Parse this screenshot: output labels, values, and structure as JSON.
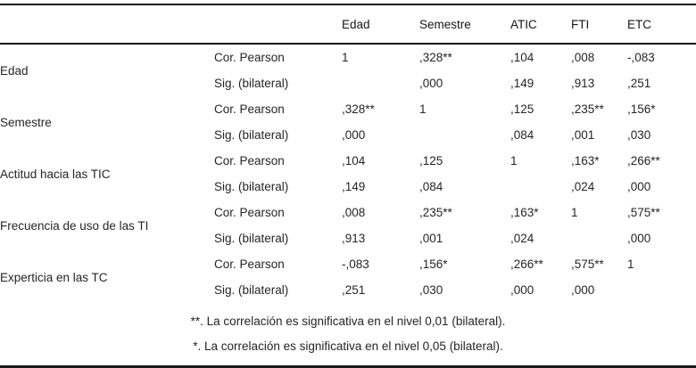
{
  "table": {
    "header": [
      "",
      "",
      "Edad",
      "Semestre",
      "ATIC",
      "FTI",
      "ETC"
    ],
    "stat_label_pearson": "Cor. Pearson",
    "stat_label_sig": "Sig. (bilateral)",
    "groups": [
      {
        "label": "Edad",
        "stat_rows": [
          {
            "stat": "Cor. Pearson",
            "values": [
              "1",
              ",328**",
              ",104",
              ",008",
              "-,083"
            ]
          },
          {
            "stat": "Sig. (bilateral)",
            "values": [
              "",
              ",000",
              ",149",
              ",913",
              ",251"
            ]
          }
        ]
      },
      {
        "label": "Semestre",
        "stat_rows": [
          {
            "stat": "Cor. Pearson",
            "values": [
              ",328**",
              "1",
              ",125",
              ",235**",
              ",156*"
            ]
          },
          {
            "stat": "Sig. (bilateral)",
            "values": [
              ",000",
              "",
              ",084",
              ",001",
              ",030"
            ]
          }
        ]
      },
      {
        "label": "Actitud hacia las TIC",
        "stat_rows": [
          {
            "stat": "Cor. Pearson",
            "values": [
              ",104",
              ",125",
              "1",
              ",163*",
              ",266**"
            ]
          },
          {
            "stat": "Sig. (bilateral)",
            "values": [
              ",149",
              ",084",
              "",
              ",024",
              ",000"
            ]
          }
        ]
      },
      {
        "label": "Frecuencia de uso de las TI",
        "stat_rows": [
          {
            "stat": "Cor. Pearson",
            "values": [
              ",008",
              ",235**",
              ",163*",
              "1",
              ",575**"
            ]
          },
          {
            "stat": "Sig. (bilateral)",
            "values": [
              ",913",
              ",001",
              ",024",
              "",
              ",000"
            ]
          }
        ]
      },
      {
        "label": "Experticia en las TC",
        "stat_rows": [
          {
            "stat": "Cor. Pearson",
            "values": [
              "-,083",
              ",156*",
              ",266**",
              ",575**",
              "1"
            ]
          },
          {
            "stat": "Sig. (bilateral)",
            "values": [
              ",251",
              ",030",
              ",000",
              ",000",
              ""
            ]
          }
        ]
      }
    ],
    "footnotes": [
      "**. La correlación es significativa en el nivel 0,01 (bilateral).",
      "*. La correlación es significativa en el nivel 0,05 (bilateral)."
    ],
    "colors": {
      "text": "#252525",
      "rule": "#1a1a1a",
      "background": "#ffffff"
    }
  }
}
